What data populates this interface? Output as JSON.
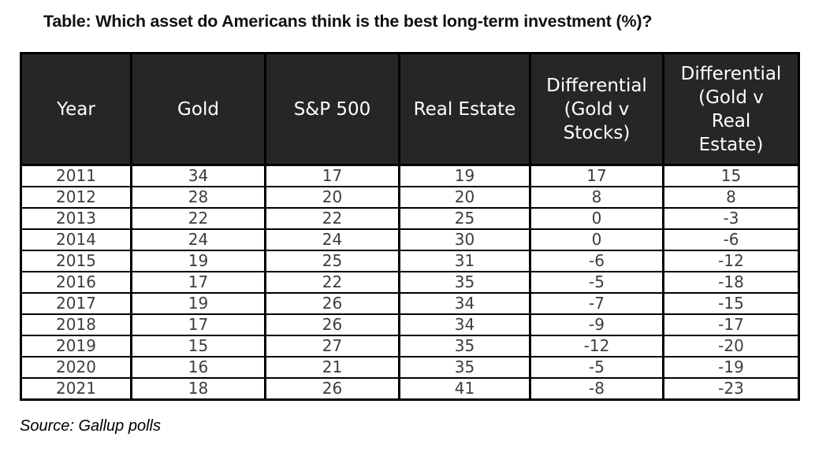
{
  "title": "Table: Which asset do Americans think is the best long-term investment (%)?",
  "source": "Source: Gallup polls",
  "table": {
    "header_display": [
      "Year",
      "Gold",
      "S&P 500",
      "Real Estate",
      "Differential\n(Gold v\nStocks)",
      "Differential\n(Gold v\nReal\nEstate)"
    ]
  },
  "colors": {
    "header_bg": "#262626",
    "header_text": "#ffffff",
    "cell_text": "#3d3d3d",
    "border": "#000000"
  },
  "chart_data": {
    "type": "table",
    "title": "Table: Which asset do Americans think is the best long-term investment (%)?",
    "columns": [
      "Year",
      "Gold",
      "S&P 500",
      "Real Estate",
      "Differential (Gold v Stocks)",
      "Differential (Gold v Real Estate)"
    ],
    "rows": [
      [
        2011,
        34,
        17,
        19,
        17,
        15
      ],
      [
        2012,
        28,
        20,
        20,
        8,
        8
      ],
      [
        2013,
        22,
        22,
        25,
        0,
        -3
      ],
      [
        2014,
        24,
        24,
        30,
        0,
        -6
      ],
      [
        2015,
        19,
        25,
        31,
        -6,
        -12
      ],
      [
        2016,
        17,
        22,
        35,
        -5,
        -18
      ],
      [
        2017,
        19,
        26,
        34,
        -7,
        -15
      ],
      [
        2018,
        17,
        26,
        34,
        -9,
        -17
      ],
      [
        2019,
        15,
        27,
        35,
        -12,
        -20
      ],
      [
        2020,
        16,
        21,
        35,
        -5,
        -19
      ],
      [
        2021,
        18,
        26,
        41,
        -8,
        -23
      ]
    ],
    "source": "Source: Gallup polls"
  }
}
